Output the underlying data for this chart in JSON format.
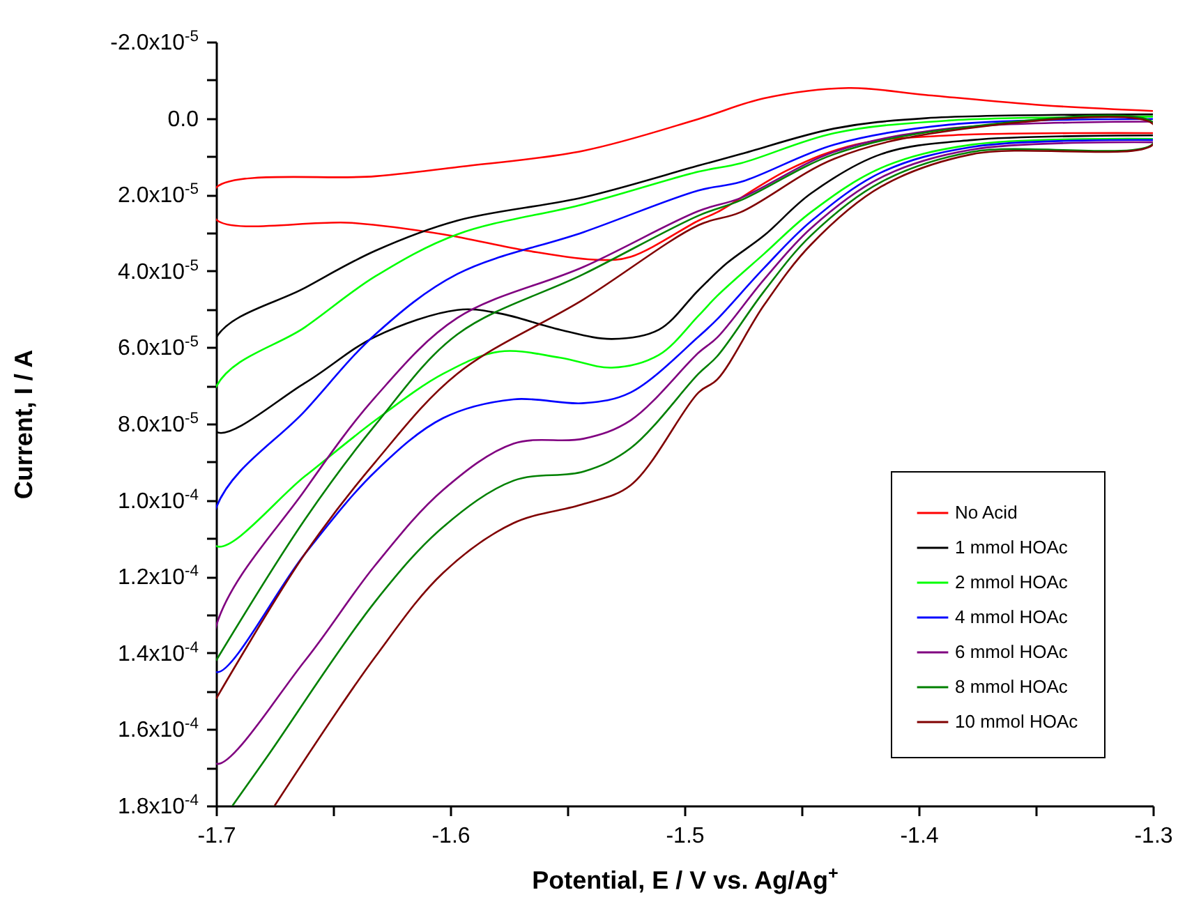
{
  "chart_data": {
    "type": "line",
    "xlabel": "Potential, E / V vs. Ag/Ag$^{+}$",
    "ylabel": "Current, I / A",
    "legend": "bottom right",
    "xlim": [
      -1.7,
      -1.3
    ],
    "ylim": [
      0.00018,
      -2e-05
    ],
    "xticks": [
      -1.7,
      {
        "value": -1.65,
        "label": null
      },
      -1.6,
      {
        "value": -1.55,
        "label": null
      },
      -1.5,
      {
        "value": -1.45,
        "label": null
      },
      -1.4,
      {
        "value": -1.35,
        "label": null
      },
      -1.3
    ],
    "yticks": [
      {
        "value": -2e-05,
        "label": "-2.0x10$^{-5}$"
      },
      {
        "value": -1e-05,
        "label": null
      },
      {
        "value": 0,
        "label": "0.0"
      },
      {
        "value": 1e-05,
        "label": null
      },
      {
        "value": 2e-05,
        "label": "2.0x10$^{-5}$"
      },
      {
        "value": 3e-05,
        "label": null
      },
      {
        "value": 4e-05,
        "label": "4.0x10$^{-5}$"
      },
      {
        "value": 5e-05,
        "label": null
      },
      {
        "value": 6e-05,
        "label": "6.0x10$^{-5}$"
      },
      {
        "value": 7e-05,
        "label": null
      },
      {
        "value": 8e-05,
        "label": "8.0x10$^{-5}$"
      },
      {
        "value": 9e-05,
        "label": null
      },
      {
        "value": 0.0001,
        "label": "1.0x10$^{-4}$"
      },
      {
        "value": 0.00011,
        "label": null
      },
      {
        "value": 0.00012,
        "label": "1.2x10$^{-4}$"
      },
      {
        "value": 0.00013,
        "label": null
      },
      {
        "value": 0.00014,
        "label": "1.4x10$^{-4}$"
      },
      {
        "value": 0.00015,
        "label": null
      },
      {
        "value": 0.00016,
        "label": "1.6x10$^{-4}$"
      },
      {
        "value": 0.00017,
        "label": null
      },
      {
        "value": 0.00018,
        "label": "1.8x10$^{-4}$"
      }
    ],
    "series": [
      {
        "name": "No Acid",
        "color": "#ff0000",
        "x": [
          -1.3,
          -1.347,
          -1.397,
          -1.43,
          -1.466,
          -1.494,
          -1.543,
          -1.597,
          -1.632,
          -1.7,
          -1.7,
          -1.642,
          -1.603,
          -1.567,
          -1.537,
          -1.523,
          -1.494,
          -1.486,
          -1.456,
          -1.427,
          -1.387,
          -1.3
        ],
        "values": [
          -1.9e-06,
          -3.4e-06,
          -6.1e-06,
          -7.9e-06,
          -5.2e-06,
          2e-07,
          8.5e-06,
          1.28e-05,
          1.52e-05,
          1.82e-05,
          2.65e-05,
          2.74e-05,
          3.04e-05,
          3.47e-05,
          3.71e-05,
          3.63e-05,
          2.68e-05,
          2.46e-05,
          1.36e-05,
          6.9e-06,
          4.5e-06,
          3.9e-06
        ]
      },
      {
        "name": "1 mmol HOAc",
        "color": "#000000",
        "x": [
          -1.3,
          -1.397,
          -1.436,
          -1.476,
          -1.494,
          -1.543,
          -1.597,
          -1.632,
          -1.662,
          -1.7,
          -1.7,
          -1.662,
          -1.632,
          -1.597,
          -1.579,
          -1.553,
          -1.531,
          -1.511,
          -1.494,
          -1.482,
          -1.466,
          -1.446,
          -1.416,
          -1.377,
          -1.3
        ],
        "values": [
          -1e-06,
          0,
          2.7e-06,
          9.4e-06,
          1.24e-05,
          2.07e-05,
          2.68e-05,
          3.47e-05,
          4.44e-05,
          5.75e-05,
          8.21e-05,
          6.93e-05,
          5.72e-05,
          5.02e-05,
          5.11e-05,
          5.54e-05,
          5.78e-05,
          5.54e-05,
          4.5e-05,
          3.8e-05,
          3.07e-05,
          1.97e-05,
          9.4e-06,
          5.7e-06,
          4.5e-06
        ]
      },
      {
        "name": "2 mmol HOAc",
        "color": "#00ff00",
        "x": [
          -1.3,
          -1.387,
          -1.436,
          -1.476,
          -1.494,
          -1.543,
          -1.597,
          -1.632,
          -1.662,
          -1.7,
          -1.7,
          -1.662,
          -1.632,
          -1.603,
          -1.579,
          -1.553,
          -1.531,
          -1.511,
          -1.494,
          -1.486,
          -1.466,
          -1.446,
          -1.416,
          -1.377,
          -1.3
        ],
        "values": [
          -4e-07,
          6e-07,
          3.9e-06,
          1.18e-05,
          1.4e-05,
          2.25e-05,
          3.04e-05,
          4.14e-05,
          5.47e-05,
          7.03e-05,
          0.000112,
          9.37e-05,
          7.91e-05,
          6.69e-05,
          6.11e-05,
          6.27e-05,
          6.53e-05,
          6.2e-05,
          5.17e-05,
          4.65e-05,
          3.55e-05,
          2.46e-05,
          1.3e-05,
          6.9e-06,
          5.4e-06
        ]
      },
      {
        "name": "4 mmol HOAc",
        "color": "#0000ff",
        "x": [
          -1.3,
          -1.387,
          -1.436,
          -1.476,
          -1.494,
          -1.543,
          -1.597,
          -1.632,
          -1.662,
          -1.7,
          -1.7,
          -1.662,
          -1.632,
          -1.603,
          -1.573,
          -1.543,
          -1.523,
          -1.494,
          -1.486,
          -1.466,
          -1.446,
          -1.416,
          -1.377,
          -1.3
        ],
        "values": [
          2e-07,
          1.7e-06,
          6.9e-06,
          1.67e-05,
          1.89e-05,
          2.98e-05,
          4.08e-05,
          5.66e-05,
          7.66e-05,
          0.000102,
          0.000145,
          0.000114,
          9.25e-05,
          7.85e-05,
          7.36e-05,
          7.46e-05,
          7.18e-05,
          5.72e-05,
          5.26e-05,
          3.92e-05,
          2.7e-05,
          1.42e-05,
          7.5e-06,
          5.7e-06
        ]
      },
      {
        "name": "6 mmol HOAc",
        "color": "#800080",
        "x": [
          -1.3,
          -1.387,
          -1.436,
          -1.476,
          -1.494,
          -1.543,
          -1.597,
          -1.632,
          -1.662,
          -1.7,
          -1.7,
          -1.662,
          -1.632,
          -1.603,
          -1.573,
          -1.543,
          -1.523,
          -1.494,
          -1.486,
          -1.466,
          -1.446,
          -1.416,
          -1.377,
          -1.3
        ],
        "values": [
          9e-07,
          2.7e-06,
          8.8e-06,
          2.09e-05,
          2.43e-05,
          3.89e-05,
          5.23e-05,
          7.3e-05,
          9.73e-05,
          0.000133,
          0.000169,
          0.000142,
          0.000117,
          9.73e-05,
          8.52e-05,
          8.39e-05,
          7.91e-05,
          6.14e-05,
          5.74e-05,
          4.22e-05,
          2.88e-05,
          1.55e-05,
          8.2e-06,
          6.3e-06
        ]
      },
      {
        "name": "8 mmol HOAc",
        "color": "#008000",
        "x": [
          -1.693,
          -1.678,
          -1.632,
          -1.603,
          -1.573,
          -1.543,
          -1.523,
          -1.494,
          -1.486,
          -1.466,
          -1.446,
          -1.416,
          -1.377,
          -1.3,
          -1.3,
          -1.387,
          -1.436,
          -1.476,
          -1.494,
          -1.543,
          -1.597,
          -1.632,
          -1.662,
          -1.7
        ],
        "values": [
          0.00018,
          0.000167,
          0.0001265,
          0.000107,
          9.49e-05,
          9.25e-05,
          8.64e-05,
          6.69e-05,
          6.23e-05,
          4.53e-05,
          3.07e-05,
          1.67e-05,
          8.8e-06,
          6.7e-06,
          1.1e-06,
          2.9e-06,
          9.4e-06,
          2.15e-05,
          2.55e-05,
          4.08e-05,
          5.66e-05,
          8.03e-05,
          0.000105,
          0.000142
        ]
      },
      {
        "name": "10 mmol HOAc",
        "color": "#800000",
        "x": [
          -1.675,
          -1.632,
          -1.603,
          -1.573,
          -1.543,
          -1.523,
          -1.494,
          -1.486,
          -1.466,
          -1.446,
          -1.416,
          -1.377,
          -1.3,
          -1.3,
          -1.387,
          -1.436,
          -1.476,
          -1.494,
          -1.543,
          -1.597,
          -1.632,
          -1.662,
          -1.7
        ],
        "values": [
          0.00018,
          0.000141,
          0.000119,
          0.000106,
          0.000101,
          9.61e-05,
          7.18e-05,
          6.84e-05,
          4.89e-05,
          3.31e-05,
          1.79e-05,
          9.4e-06,
          6.9e-06,
          1.5e-06,
          3.3e-06,
          1.06e-05,
          2.46e-05,
          2.8e-05,
          4.74e-05,
          6.69e-05,
          9e-05,
          0.000114,
          0.000152
        ]
      }
    ]
  }
}
